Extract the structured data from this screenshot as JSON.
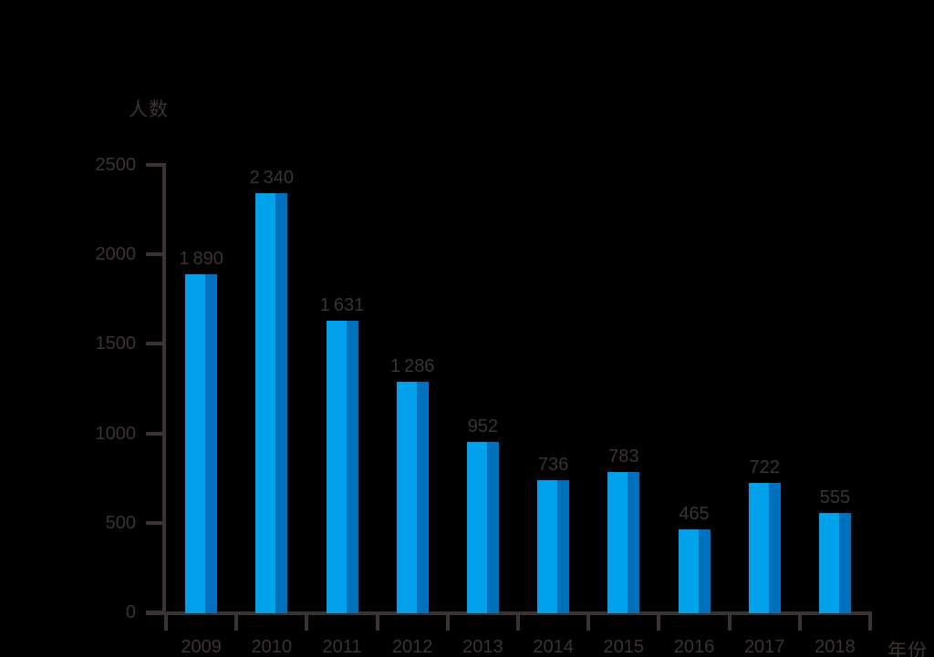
{
  "chart_data": {
    "type": "bar",
    "title": "",
    "ylabel": "人数",
    "xlabel": "年份",
    "categories": [
      "2009",
      "2010",
      "2011",
      "2012",
      "2013",
      "2014",
      "2015",
      "2016",
      "2017",
      "2018"
    ],
    "values": [
      1890,
      2340,
      1631,
      1286,
      952,
      736,
      783,
      465,
      722,
      555
    ],
    "value_labels": [
      "1 890",
      "2 340",
      "1 631",
      "1 286",
      "952",
      "736",
      "783",
      "465",
      "722",
      "555"
    ],
    "yticks": [
      0,
      500,
      1000,
      1500,
      2000,
      2500
    ],
    "ylim": [
      0,
      2500
    ],
    "grid": false,
    "legend_position": "none",
    "colors": {
      "background": "#000000",
      "ink": "#3A3331",
      "bar_light": "#00A1EA",
      "bar_dark": "#0071BD"
    }
  }
}
